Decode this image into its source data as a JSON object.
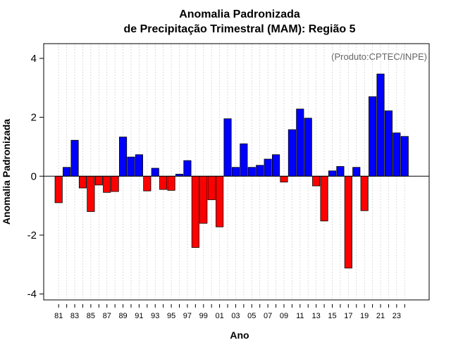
{
  "chart_data": {
    "type": "bar",
    "title_line1": "Anomalia Padronizada",
    "title_line2": "de Precipitação Trimestral (MAM): Região 5",
    "xlabel": "Ano",
    "ylabel": "Anomalia Padronizada",
    "annotation": "(Produto:CPTEC/INPE)",
    "ylim": [
      -4.2,
      4.5
    ],
    "yticks": [
      -4,
      -2,
      0,
      2,
      4
    ],
    "ytick_labels": [
      "-4",
      "-2",
      "0",
      "2",
      "4"
    ],
    "years": [
      1981,
      1982,
      1983,
      1984,
      1985,
      1986,
      1987,
      1988,
      1989,
      1990,
      1991,
      1992,
      1993,
      1994,
      1995,
      1996,
      1997,
      1998,
      1999,
      2000,
      2001,
      2002,
      2003,
      2004,
      2005,
      2006,
      2007,
      2008,
      2009,
      2010,
      2011,
      2012,
      2013,
      2014,
      2015,
      2016,
      2017,
      2018,
      2019,
      2020,
      2021,
      2022,
      2023,
      2024
    ],
    "values": [
      -0.9,
      0.3,
      1.22,
      -0.4,
      -1.2,
      -0.3,
      -0.55,
      -0.52,
      1.33,
      0.65,
      0.73,
      -0.5,
      0.27,
      -0.45,
      -0.48,
      0.07,
      0.53,
      -2.42,
      -1.6,
      -0.8,
      -1.72,
      1.95,
      0.3,
      1.1,
      0.3,
      0.37,
      0.58,
      0.73,
      -0.2,
      1.58,
      2.28,
      1.97,
      -0.33,
      -1.52,
      0.18,
      0.33,
      -3.12,
      0.3,
      -1.17,
      2.7,
      3.47,
      2.22,
      1.47,
      1.35
    ],
    "xtick_labels": [
      "81",
      "83",
      "85",
      "87",
      "89",
      "91",
      "93",
      "95",
      "97",
      "99",
      "01",
      "03",
      "05",
      "07",
      "09",
      "11",
      "13",
      "15",
      "17",
      "19",
      "21",
      "23"
    ],
    "colors": {
      "positive": "#0000ff",
      "negative": "#ff0000",
      "grid": "#d3d3d3",
      "axis": "#000000",
      "annotation": "#666666"
    }
  }
}
